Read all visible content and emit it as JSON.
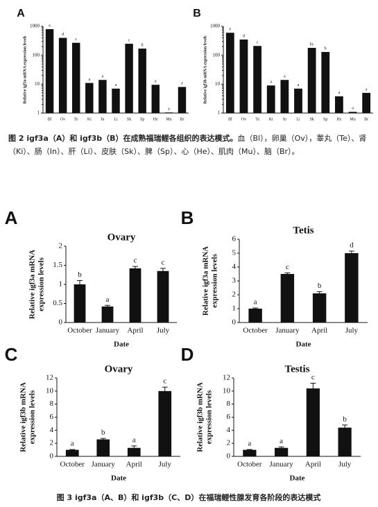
{
  "chart_data": [
    {
      "type": "bar",
      "panel": "A",
      "ylabel": "Relative igf3a mRNA expression levels",
      "log_scale": true,
      "categories": [
        "Bl",
        "Ov",
        "Te",
        "Ki",
        "In",
        "Li",
        "Sk",
        "Sp",
        "He",
        "Mu",
        "Br"
      ],
      "values": [
        800,
        400,
        270,
        11,
        14,
        7,
        250,
        170,
        9.5,
        1.05,
        8
      ],
      "letters": [
        "e",
        "d",
        "c",
        "a",
        "a",
        "a",
        "c",
        "b",
        "a",
        "a",
        "a"
      ],
      "color": "#111111",
      "ylim": [
        1,
        1000
      ],
      "yticks": [
        1,
        10,
        100,
        1000
      ]
    },
    {
      "type": "bar",
      "panel": "B",
      "ylabel": "Relative igf3b mRNA expression levels",
      "log_scale": true,
      "categories": [
        "Bl",
        "Ov",
        "Te",
        "Ki",
        "In",
        "Li",
        "Sk",
        "Sp",
        "He",
        "Mu",
        "Br"
      ],
      "values": [
        600,
        350,
        210,
        9,
        14,
        7,
        180,
        130,
        3.8,
        1.1,
        5
      ],
      "letters": [
        "e",
        "d",
        "c",
        "a",
        "a",
        "a",
        "bc",
        "b",
        "a",
        "a",
        "a"
      ],
      "color": "#111111",
      "ylim": [
        1,
        1000
      ],
      "yticks": [
        1,
        10,
        100,
        1000
      ]
    },
    {
      "type": "bar",
      "panel": "A",
      "title": "Ovary",
      "xlabel": "Date",
      "ylabel": [
        "Relative igf3a mRNA",
        "expression levels"
      ],
      "categories": [
        "October",
        "January",
        "April",
        "July"
      ],
      "values": [
        1.0,
        0.42,
        1.42,
        1.35
      ],
      "errors": [
        0.1,
        0.03,
        0.05,
        0.07
      ],
      "letters": [
        "b",
        "a",
        "c",
        "c"
      ],
      "color": "#111111",
      "ylim": [
        0,
        2
      ],
      "yticks": [
        0,
        0.5,
        1,
        1.5,
        2
      ]
    },
    {
      "type": "bar",
      "panel": "B",
      "title": "Tetis",
      "xlabel": "Date",
      "ylabel": [
        "Relative igf3a mRNA",
        "expression levels"
      ],
      "categories": [
        "October",
        "January",
        "April",
        "July"
      ],
      "values": [
        1.0,
        3.5,
        2.1,
        5.0
      ],
      "errors": [
        0.05,
        0.08,
        0.12,
        0.15
      ],
      "letters": [
        "a",
        "c",
        "b",
        "d"
      ],
      "color": "#111111",
      "ylim": [
        0,
        6
      ],
      "yticks": [
        0,
        1,
        2,
        3,
        4,
        5,
        6
      ]
    },
    {
      "type": "bar",
      "panel": "C",
      "title": "Ovary",
      "xlabel": "Date",
      "ylabel": [
        "Relative igf3b mRNA",
        "expression levels"
      ],
      "categories": [
        "October",
        "January",
        "April",
        "July"
      ],
      "values": [
        1.0,
        2.6,
        1.3,
        10.0
      ],
      "errors": [
        0.05,
        0.15,
        0.3,
        0.6
      ],
      "letters": [
        "a",
        "b",
        "a",
        "c"
      ],
      "color": "#111111",
      "ylim": [
        0,
        12
      ],
      "yticks": [
        0,
        2,
        4,
        6,
        8,
        10,
        12
      ]
    },
    {
      "type": "bar",
      "panel": "D",
      "title": "Testis",
      "xlabel": "Date",
      "ylabel": [
        "Relative igf3b mRNA",
        "expression levels"
      ],
      "categories": [
        "October",
        "January",
        "April",
        "July"
      ],
      "values": [
        1.0,
        1.3,
        10.4,
        4.4
      ],
      "errors": [
        0.05,
        0.15,
        0.8,
        0.4
      ],
      "letters": [
        "a",
        "a",
        "c",
        "b"
      ],
      "color": "#111111",
      "ylim": [
        0,
        12
      ],
      "yticks": [
        0,
        2,
        4,
        6,
        8,
        10,
        12
      ]
    }
  ],
  "captions": {
    "fig2_label": "图 2 igf3a（A）和 igf3b（B）在成熟福瑞鲤各组织的表达模式。",
    "fig2_text": "血（Bl），卵巢（Ov），睾丸（Te）、肾（Ki）、肠（In）、肝（Li）、皮肤（Sk）、脾（Sp）、心（He）、肌肉（Mu）、脑（Br）。",
    "fig3": "图 3 igf3a（A、B）和 igf3b（C、D）在福瑞鲤性腺发育各阶段的表达模式"
  }
}
